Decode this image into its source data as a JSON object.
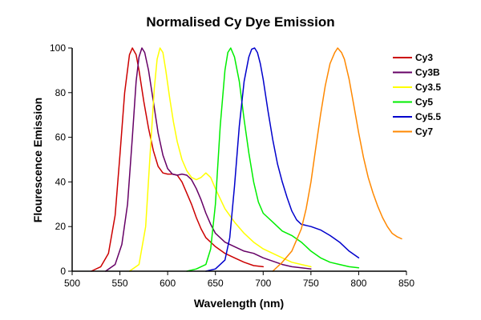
{
  "chart_data": {
    "type": "line",
    "title": "Normalised Cy Dye Emission",
    "xlabel": "Wavelength (nm)",
    "ylabel": "Flourescence Emission",
    "xlim": [
      500,
      850
    ],
    "ylim": [
      0,
      100
    ],
    "xticks": [
      500,
      550,
      600,
      650,
      700,
      750,
      800,
      850
    ],
    "yticks": [
      0,
      20,
      40,
      60,
      80,
      100
    ],
    "grid": false,
    "legend_position": "top-right",
    "series": [
      {
        "name": "Cy3",
        "color": "#cc0000",
        "x": [
          520,
          530,
          538,
          545,
          550,
          555,
          560,
          563,
          567,
          570,
          575,
          580,
          585,
          590,
          595,
          600,
          605,
          610,
          615,
          620,
          625,
          630,
          635,
          640,
          650,
          660,
          670,
          680,
          690,
          700
        ],
        "y": [
          0,
          2,
          8,
          25,
          52,
          80,
          97,
          100,
          97,
          90,
          76,
          64,
          54,
          47,
          44,
          43.5,
          43.5,
          43,
          40,
          35,
          30,
          24,
          19,
          15,
          11,
          8,
          6,
          4,
          2.5,
          2
        ]
      },
      {
        "name": "Cy3B",
        "color": "#660066",
        "x": [
          535,
          545,
          552,
          558,
          563,
          567,
          570,
          573,
          576,
          580,
          585,
          590,
          595,
          600,
          605,
          610,
          615,
          620,
          625,
          630,
          635,
          640,
          645,
          650,
          660,
          670,
          680,
          690,
          700,
          710,
          720,
          730,
          740,
          750
        ],
        "y": [
          0,
          3,
          12,
          30,
          60,
          85,
          96,
          100,
          98,
          90,
          76,
          62,
          52,
          46,
          43.5,
          43,
          43.5,
          43,
          41,
          37,
          32,
          26,
          21,
          17,
          13,
          11,
          9,
          8,
          6,
          4.5,
          3,
          2,
          1.5,
          1
        ]
      },
      {
        "name": "Cy3.5",
        "color": "#ffff00",
        "x": [
          560,
          570,
          577,
          582,
          586,
          589,
          592,
          595,
          598,
          602,
          606,
          610,
          615,
          620,
          625,
          630,
          635,
          640,
          645,
          650,
          660,
          670,
          680,
          690,
          700,
          710,
          720,
          730,
          740,
          750
        ],
        "y": [
          0,
          3,
          20,
          55,
          82,
          95,
          100,
          98,
          90,
          78,
          67,
          58,
          50,
          45,
          42,
          41,
          42,
          44,
          42,
          37,
          28,
          22,
          17,
          13,
          10,
          8,
          6,
          4,
          3,
          2
        ]
      },
      {
        "name": "Cy5",
        "color": "#00ee00",
        "x": [
          620,
          630,
          640,
          645,
          650,
          655,
          660,
          663,
          666,
          670,
          675,
          680,
          685,
          690,
          695,
          700,
          705,
          710,
          720,
          730,
          740,
          750,
          760,
          770,
          780,
          790,
          800
        ],
        "y": [
          0,
          1,
          3,
          10,
          30,
          65,
          90,
          98,
          100,
          96,
          85,
          68,
          53,
          40,
          31,
          26,
          24,
          22,
          18,
          16,
          13,
          9,
          6,
          4,
          3,
          2,
          1.5
        ]
      },
      {
        "name": "Cy5.5",
        "color": "#0000cc",
        "x": [
          640,
          650,
          660,
          665,
          670,
          675,
          680,
          685,
          688,
          691,
          694,
          697,
          700,
          705,
          710,
          715,
          720,
          725,
          730,
          735,
          740,
          745,
          750,
          760,
          770,
          780,
          790,
          800
        ],
        "y": [
          0,
          1,
          5,
          15,
          38,
          65,
          85,
          96,
          99.5,
          100,
          98,
          93,
          86,
          72,
          59,
          48,
          40,
          33,
          27,
          23,
          21,
          20.5,
          20,
          18.5,
          16,
          13,
          9,
          6
        ]
      },
      {
        "name": "Cy7",
        "color": "#ff8800",
        "x": [
          710,
          720,
          730,
          740,
          745,
          750,
          755,
          760,
          765,
          770,
          775,
          778,
          782,
          785,
          790,
          795,
          800,
          805,
          810,
          815,
          820,
          825,
          830,
          835,
          840,
          845
        ],
        "y": [
          0,
          4,
          9,
          19,
          28,
          40,
          55,
          70,
          83,
          93,
          98,
          100,
          98,
          95,
          86,
          74,
          62,
          51,
          42,
          35,
          29,
          24,
          20,
          17,
          15.5,
          14.5
        ]
      }
    ]
  }
}
